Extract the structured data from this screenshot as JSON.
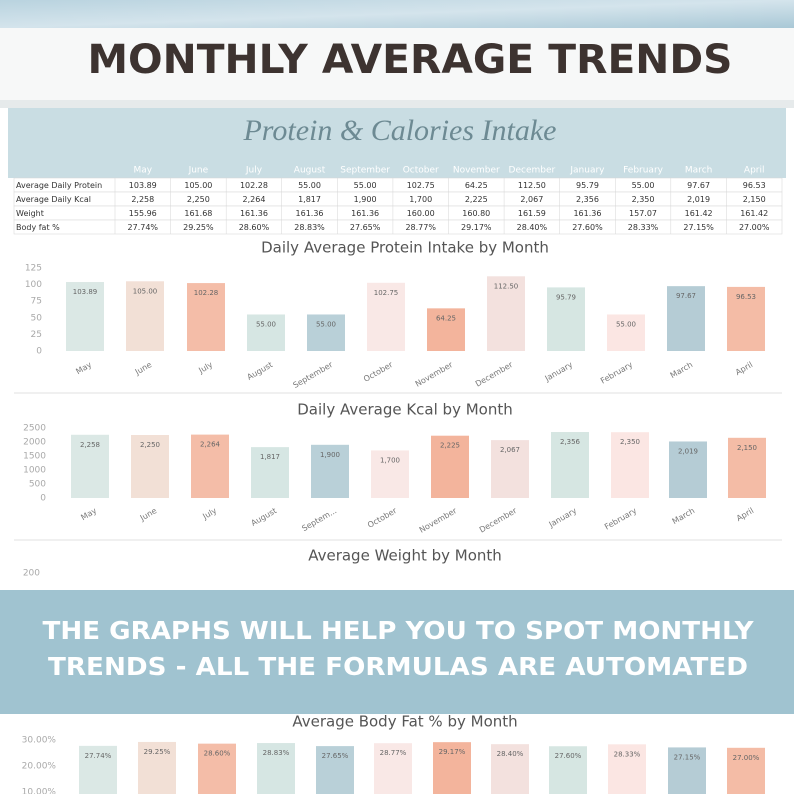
{
  "header": {
    "title": "MONTHLY AVERAGE TRENDS"
  },
  "table": {
    "title": "Protein & Calories Intake",
    "columns": [
      "May",
      "June",
      "July",
      "August",
      "September",
      "October",
      "November",
      "December",
      "January",
      "February",
      "March",
      "April"
    ],
    "rows": [
      [
        "Average Daily Protein",
        "103.89",
        "105.00",
        "102.28",
        "55.00",
        "55.00",
        "102.75",
        "64.25",
        "112.50",
        "95.79",
        "55.00",
        "97.67",
        "96.53"
      ],
      [
        "Average Daily Kcal",
        "2,258",
        "2,250",
        "2,264",
        "1,817",
        "1,900",
        "1,700",
        "2,225",
        "2,067",
        "2,356",
        "2,350",
        "2,019",
        "2,150"
      ],
      [
        "Weight",
        "155.96",
        "161.68",
        "161.36",
        "161.36",
        "161.36",
        "160.00",
        "160.80",
        "161.59",
        "161.36",
        "157.07",
        "161.42",
        "161.42"
      ],
      [
        "Body fat %",
        "27.74%",
        "29.25%",
        "28.60%",
        "28.83%",
        "27.65%",
        "28.77%",
        "29.17%",
        "28.40%",
        "27.60%",
        "28.33%",
        "27.15%",
        "27.00%"
      ]
    ]
  },
  "banner": {
    "lines": [
      "THE GRAPHS WILL HELP YOU TO SPOT MONTHLY",
      "TRENDS - ALL THE FORMULAS ARE AUTOMATED"
    ]
  },
  "chart_data": [
    {
      "type": "bar",
      "title": "Daily Average Protein Intake by Month",
      "categories": [
        "May",
        "June",
        "July",
        "August",
        "September",
        "October",
        "November",
        "December",
        "January",
        "February",
        "March",
        "April"
      ],
      "values": [
        103.89,
        105,
        102.28,
        55,
        55,
        102.75,
        64.25,
        112.5,
        95.79,
        55,
        97.67,
        96.53
      ],
      "value_labels": [
        "103.89",
        "105.00",
        "102.28",
        "55.00",
        "55.00",
        "102.75",
        "64.25",
        "112.50",
        "95.79",
        "55.00",
        "97.67",
        "96.53"
      ],
      "colors": [
        "#dbe8e5",
        "#f2e0d6",
        "#f4bda8",
        "#d6e6e3",
        "#b9d0d8",
        "#f9e8e6",
        "#f3b49c",
        "#f3e1de",
        "#d6e6e2",
        "#fbe6e3",
        "#b5ccd5",
        "#f4bca6"
      ],
      "ylim": [
        0,
        125
      ],
      "yticks": [
        0,
        25,
        50,
        75,
        100,
        125
      ]
    },
    {
      "type": "bar",
      "title": "Daily Average Kcal by Month",
      "categories": [
        "May",
        "June",
        "July",
        "August",
        "Septem...",
        "October",
        "November",
        "December",
        "January",
        "February",
        "March",
        "April"
      ],
      "values": [
        2258,
        2250,
        2264,
        1817,
        1900,
        1700,
        2225,
        2067,
        2356,
        2350,
        2019,
        2150
      ],
      "value_labels": [
        "2,258",
        "2,250",
        "2,264",
        "1,817",
        "1,900",
        "1,700",
        "2,225",
        "2,067",
        "2,356",
        "2,350",
        "2,019",
        "2,150"
      ],
      "colors": [
        "#dbe8e5",
        "#f2e0d6",
        "#f4bda8",
        "#d6e6e3",
        "#b9d0d8",
        "#f9e8e6",
        "#f3b49c",
        "#f3e1de",
        "#d6e6e2",
        "#fbe6e3",
        "#b5ccd5",
        "#f4bca6"
      ],
      "ylim": [
        0,
        2500
      ],
      "yticks": [
        0,
        500,
        1000,
        1500,
        2000,
        2500
      ]
    },
    {
      "type": "bar",
      "title": "Average Weight by Month",
      "ylim": [
        0,
        200
      ],
      "yticks": [
        200
      ]
    },
    {
      "type": "bar",
      "title": "Average Body Fat % by Month",
      "values": [
        27.74,
        29.25,
        28.6,
        28.83,
        27.65,
        28.77,
        29.17,
        28.4,
        27.6,
        28.33,
        27.15,
        27
      ],
      "value_labels": [
        "27.74%",
        "29.25%",
        "28.60%",
        "28.83%",
        "27.65%",
        "28.77%",
        "29.17%",
        "28.40%",
        "27.60%",
        "28.33%",
        "27.15%",
        "27.00%"
      ],
      "colors": [
        "#dbe8e5",
        "#f2e0d6",
        "#f4bda8",
        "#d6e6e3",
        "#b9d0d8",
        "#f9e8e6",
        "#f3b49c",
        "#f3e1de",
        "#d6e6e2",
        "#fbe6e3",
        "#b5ccd5",
        "#f4bca6"
      ],
      "ylim": [
        0,
        30
      ],
      "yticks": [
        {
          "value": 10,
          "label": "10.00%"
        },
        {
          "value": 20,
          "label": "20.00%"
        },
        {
          "value": 30,
          "label": "30.00%"
        }
      ]
    }
  ]
}
